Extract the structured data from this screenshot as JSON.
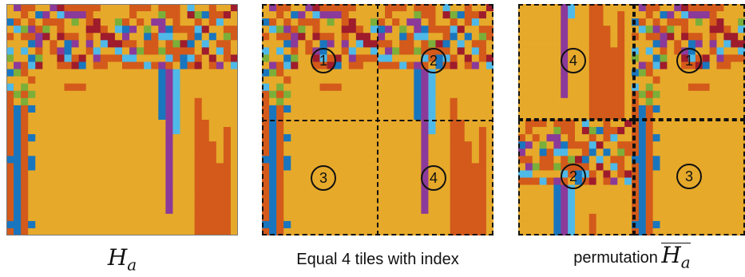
{
  "colors": {
    "orange": "#E6A92A",
    "red_orange": "#D35A1A",
    "blue": "#1976BE",
    "light_blue": "#4FB9E8",
    "green": "#7BAF3A",
    "purple": "#8B3A99",
    "dark_red": "#9E1C2C",
    "panel_border": "#7a7a7a"
  },
  "panel1": {
    "caption_symbol": "H",
    "caption_subscript": "a"
  },
  "panel2": {
    "caption": "Equal 4 tiles with index",
    "tiles": [
      {
        "index": "1"
      },
      {
        "index": "2"
      },
      {
        "index": "3"
      },
      {
        "index": "4"
      }
    ]
  },
  "panel3": {
    "caption_prefix": "permutation",
    "caption_symbol": "H",
    "caption_subscript": "a",
    "tiles": [
      {
        "index": "4"
      },
      {
        "index": "1"
      },
      {
        "index": "2"
      },
      {
        "index": "3"
      }
    ]
  }
}
